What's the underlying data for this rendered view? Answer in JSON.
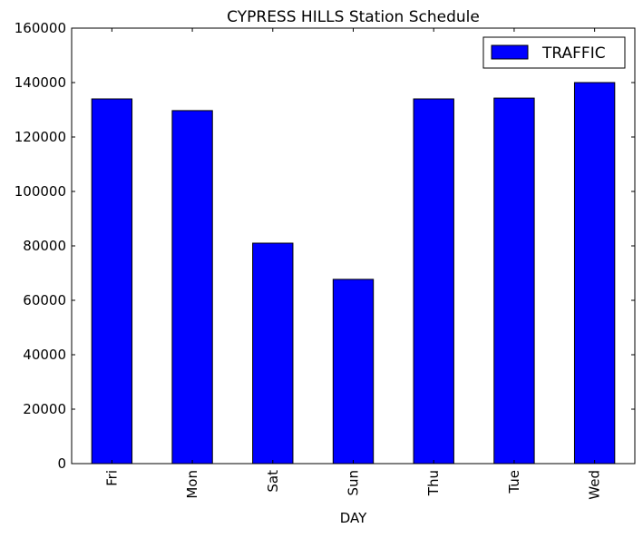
{
  "chart_data": {
    "type": "bar",
    "title": "CYPRESS HILLS Station Schedule",
    "xlabel": "DAY",
    "ylabel": "",
    "categories": [
      "Fri",
      "Mon",
      "Sat",
      "Sun",
      "Thu",
      "Tue",
      "Wed"
    ],
    "series": [
      {
        "name": "TRAFFIC",
        "values": [
          134000,
          129700,
          81000,
          67700,
          134000,
          134300,
          140000
        ],
        "color": "#0000ff"
      }
    ],
    "ylim": [
      0,
      160000
    ],
    "yticks": [
      0,
      20000,
      40000,
      60000,
      80000,
      100000,
      120000,
      140000,
      160000
    ],
    "ytick_labels": [
      "0",
      "20000",
      "40000",
      "60000",
      "80000",
      "100000",
      "120000",
      "140000",
      "160000"
    ],
    "grid": false,
    "legend_position": "top-right"
  }
}
